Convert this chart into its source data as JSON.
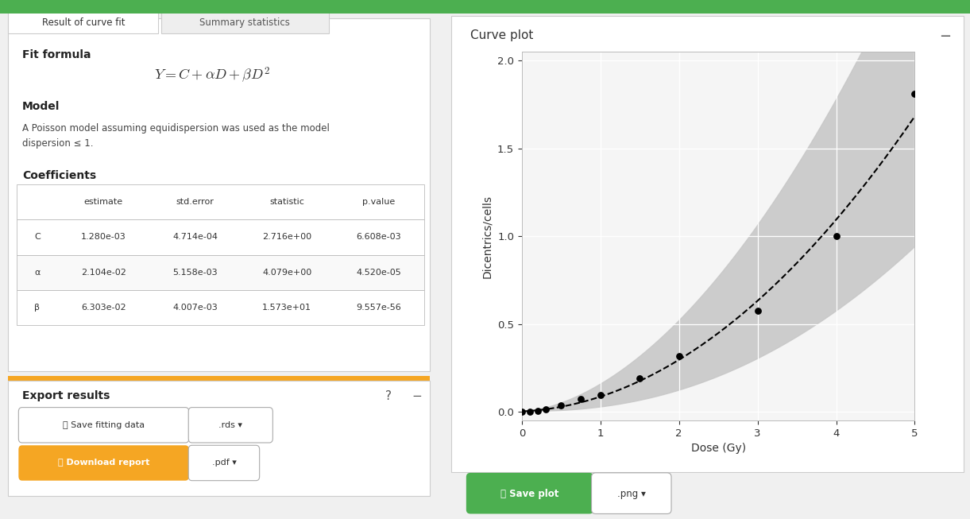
{
  "tab1_label": "Result of curve fit",
  "tab2_label": "Summary statistics",
  "fit_formula_title": "Fit formula",
  "fit_formula": "$Y = C + \\alpha D + \\beta D^2$",
  "model_title": "Model",
  "model_text": "A Poisson model assuming equidispersion was used as the model\ndispersion ≤ 1.",
  "coefficients_title": "Coefficients",
  "table_headers": [
    "",
    "estimate",
    "std.error",
    "statistic",
    "p.value"
  ],
  "table_rows": [
    [
      "C",
      "1.280e-03",
      "4.714e-04",
      "2.716e+00",
      "6.608e-03"
    ],
    [
      "α",
      "2.104e-02",
      "5.158e-03",
      "4.079e+00",
      "4.520e-05"
    ],
    [
      "β",
      "6.303e-02",
      "4.007e-03",
      "1.573e+01",
      "9.557e-56"
    ]
  ],
  "export_title": "Export results",
  "btn1_label": "⤓ Save fitting data",
  "btn1_ext": ".rds ▾",
  "btn2_label": "⤓ Download report",
  "btn2_ext": ".pdf ▾",
  "curve_plot_title": "Curve plot",
  "xlabel": "Dose (Gy)",
  "ylabel": "Dicentrics/cells",
  "xlim": [
    0,
    5
  ],
  "ylim": [
    -0.05,
    2.05
  ],
  "yticks": [
    0.0,
    0.5,
    1.0,
    1.5,
    2.0
  ],
  "xticks": [
    0,
    1,
    2,
    3,
    4,
    5
  ],
  "C": 0.00128,
  "alpha": 0.02104,
  "beta": 0.06303,
  "data_x": [
    0.0,
    0.1,
    0.2,
    0.3,
    0.5,
    0.75,
    1.0,
    1.5,
    2.0,
    3.0,
    4.0,
    5.0
  ],
  "data_y": [
    0.0,
    0.0,
    0.005,
    0.015,
    0.035,
    0.07,
    0.095,
    0.19,
    0.315,
    0.575,
    1.0,
    1.81
  ],
  "green_color": "#4CAF50",
  "orange_color": "#F5A623",
  "tab_green": "#4CAF50",
  "save_plot_green": "#4CAF50",
  "bg_color": "#f0f0f0",
  "card_border": "#cccccc",
  "table_border": "#bbbbbb"
}
